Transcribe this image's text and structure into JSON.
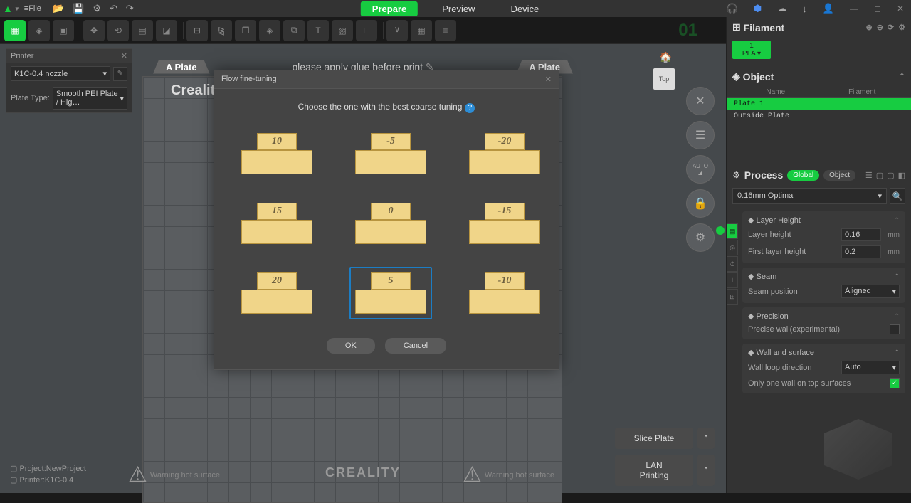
{
  "titlebar": {
    "file_menu": "≡File",
    "tabs": {
      "prepare": "Prepare",
      "preview": "Preview",
      "device": "Device"
    }
  },
  "printer_panel": {
    "title": "Printer",
    "nozzle": "K1C-0.4 nozzle",
    "plate_type_label": "Plate Type:",
    "plate_type": "Smooth PEI Plate / Hig…"
  },
  "plate": {
    "tab_left": "A Plate",
    "tab_right": "A Plate",
    "banner": "please apply glue before print",
    "title": "Creality Smooth PEI Plate",
    "top_badge": "Top",
    "auto_label": "AUTO",
    "warn_left": "Warning hot surface",
    "warn_right": "Warning hot surface",
    "logo": "CREALITY",
    "big01": "01"
  },
  "dialog": {
    "title": "Flow fine-tuning",
    "message": "Choose the one with the best coarse tuning",
    "tiles": [
      "10",
      "-5",
      "-20",
      "15",
      "0",
      "-15",
      "20",
      "5",
      "-10"
    ],
    "selected_index": 7,
    "ok": "OK",
    "cancel": "Cancel"
  },
  "status": {
    "project_label": "Project:",
    "project": "NewProject",
    "printer_label": "Printer:",
    "printer": "K1C-0.4"
  },
  "actions": {
    "slice": "Slice Plate",
    "lan": "LAN Printing"
  },
  "right": {
    "filament_h": "Filament",
    "filament_badge_num": "1",
    "filament_badge": "PLA ▾",
    "object_h": "Object",
    "obj_cols": {
      "name": "Name",
      "fil": "Filament"
    },
    "obj_rows": [
      {
        "label": "Plate 1",
        "sel": true
      },
      {
        "label": "Outside Plate",
        "sel": false
      }
    ],
    "process_h": "Process",
    "scope_global": "Global",
    "scope_object": "Object",
    "preset": "0.16mm Optimal",
    "groups": {
      "layer": {
        "title": "Layer Height",
        "rows": [
          {
            "label": "Layer height",
            "value": "0.16",
            "unit": "mm"
          },
          {
            "label": "First layer height",
            "value": "0.2",
            "unit": "mm"
          }
        ]
      },
      "seam": {
        "title": "Seam",
        "rows": [
          {
            "label": "Seam position",
            "select": "Aligned"
          }
        ]
      },
      "precision": {
        "title": "Precision",
        "rows": [
          {
            "label": "Precise wall(experimental)",
            "check": false
          }
        ]
      },
      "wall": {
        "title": "Wall and surface",
        "rows": [
          {
            "label": "Wall loop direction",
            "select": "Auto"
          },
          {
            "label": "Only one wall on top surfaces",
            "check": true
          }
        ]
      }
    }
  },
  "colors": {
    "accent": "#17cc41"
  }
}
